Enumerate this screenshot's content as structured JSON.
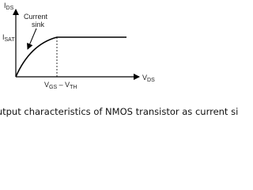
{
  "diagram": {
    "y_axis_label": {
      "main": "I",
      "sub": "DS"
    },
    "sat_label": {
      "main": "I",
      "sub": "SAT"
    },
    "x_axis_label": {
      "main": "V",
      "sub": "DS"
    },
    "knee_label": {
      "v1": "V",
      "sub1": "GS",
      "sep": " – V",
      "sub2": "TH"
    },
    "annotation": [
      "Current",
      "sink"
    ]
  },
  "caption": "Output characteristics of NMOS transistor as current sink"
}
